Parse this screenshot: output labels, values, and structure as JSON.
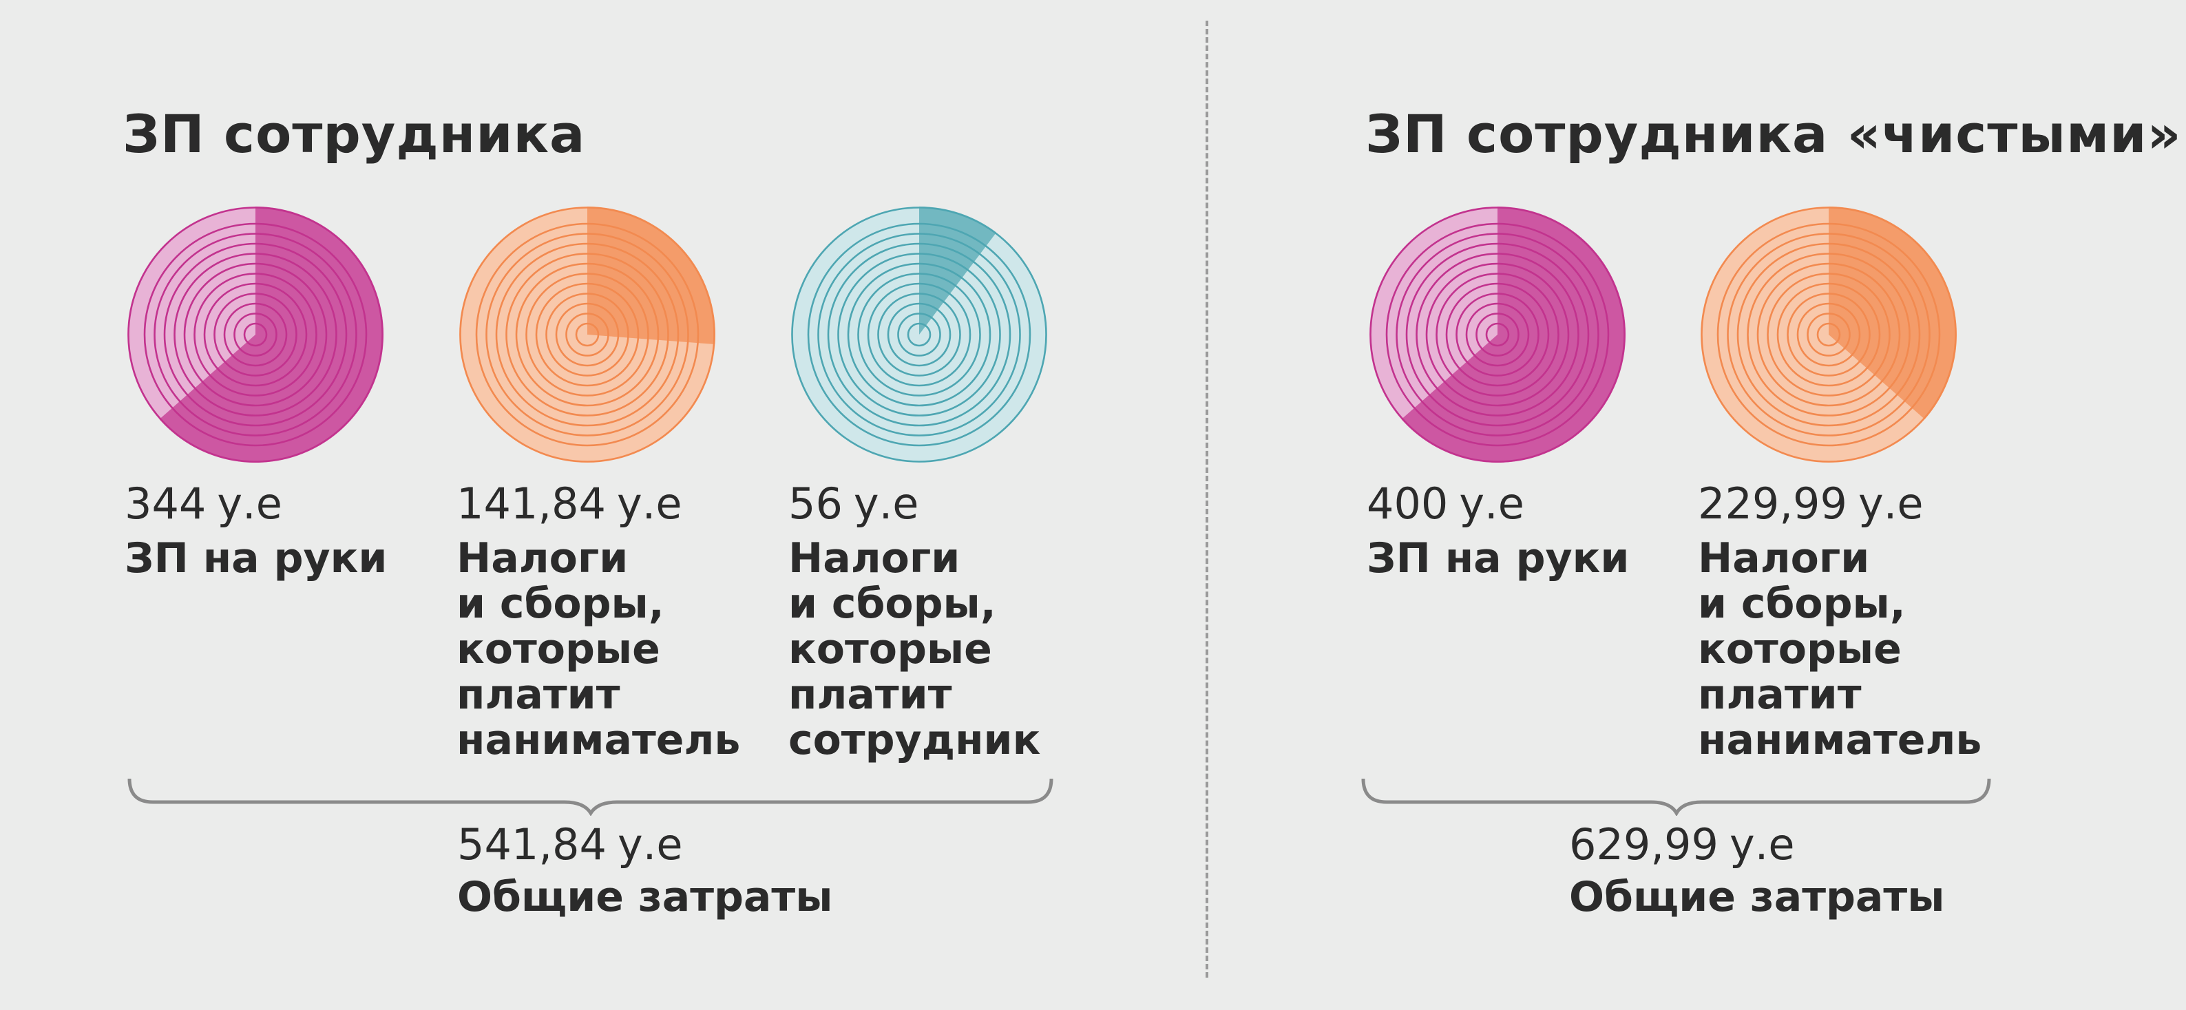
{
  "panels": [
    {
      "title": "ЗП сотрудника",
      "total": {
        "value": "541,84",
        "unit": "у.е",
        "label": "Общие затраты"
      }
    },
    {
      "title": "ЗП сотрудника «чистыми»",
      "total": {
        "value": "629,99",
        "unit": "у.е",
        "label": "Общие затраты"
      }
    }
  ],
  "chart_data": [
    {
      "type": "pie",
      "panel": 0,
      "items": [
        {
          "value": "344",
          "unit": "у.е",
          "label": "ЗП на руки",
          "share": 0.635,
          "color": "#c2338e",
          "light": "#e8b3d6"
        },
        {
          "value": "141,84",
          "unit": "у.е",
          "label": "Налоги\nи сборы,\nкоторые\nплатит\nнаниматель",
          "share": 0.262,
          "color": "#f28a50",
          "light": "#f8c8ab"
        },
        {
          "value": "56",
          "unit": "у.е",
          "label": "Налоги\nи сборы,\nкоторые\nплатит\nсотрудник",
          "share": 0.103,
          "color": "#4ea6b2",
          "light": "#cfe7ea"
        }
      ]
    },
    {
      "type": "pie",
      "panel": 1,
      "items": [
        {
          "value": "400",
          "unit": "у.е",
          "label": "ЗП на руки",
          "share": 0.635,
          "color": "#c2338e",
          "light": "#e8b3d6"
        },
        {
          "value": "229,99",
          "unit": "у.е",
          "label": "Налоги\nи сборы,\nкоторые\nплатит\nнаниматель",
          "share": 0.365,
          "color": "#f28a50",
          "light": "#f8c8ab"
        }
      ]
    }
  ]
}
